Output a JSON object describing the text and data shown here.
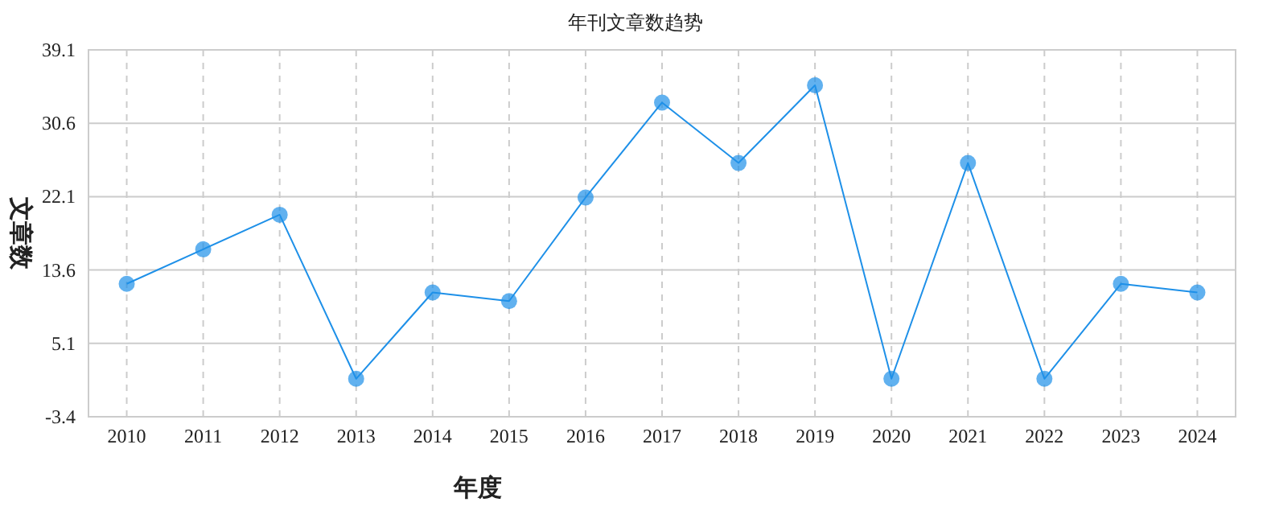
{
  "chart_data": {
    "type": "line",
    "title": "年刊文章数趋势",
    "xlabel": "年度",
    "ylabel": "文章数",
    "categories": [
      "2010",
      "2011",
      "2012",
      "2013",
      "2014",
      "2015",
      "2016",
      "2017",
      "2018",
      "2019",
      "2020",
      "2021",
      "2022",
      "2023",
      "2024"
    ],
    "series": [
      {
        "color": "#1e90e8",
        "values": [
          12,
          16,
          20,
          1,
          11,
          10,
          22,
          33,
          26,
          35,
          1,
          26,
          1,
          12,
          11
        ]
      }
    ],
    "ylim": [
      -3.4,
      39.1
    ],
    "yticks": [
      -3.4,
      5.1,
      13.6,
      22.1,
      30.6,
      39.1
    ],
    "grid": true,
    "marker": "circle",
    "line_style": "solid"
  }
}
